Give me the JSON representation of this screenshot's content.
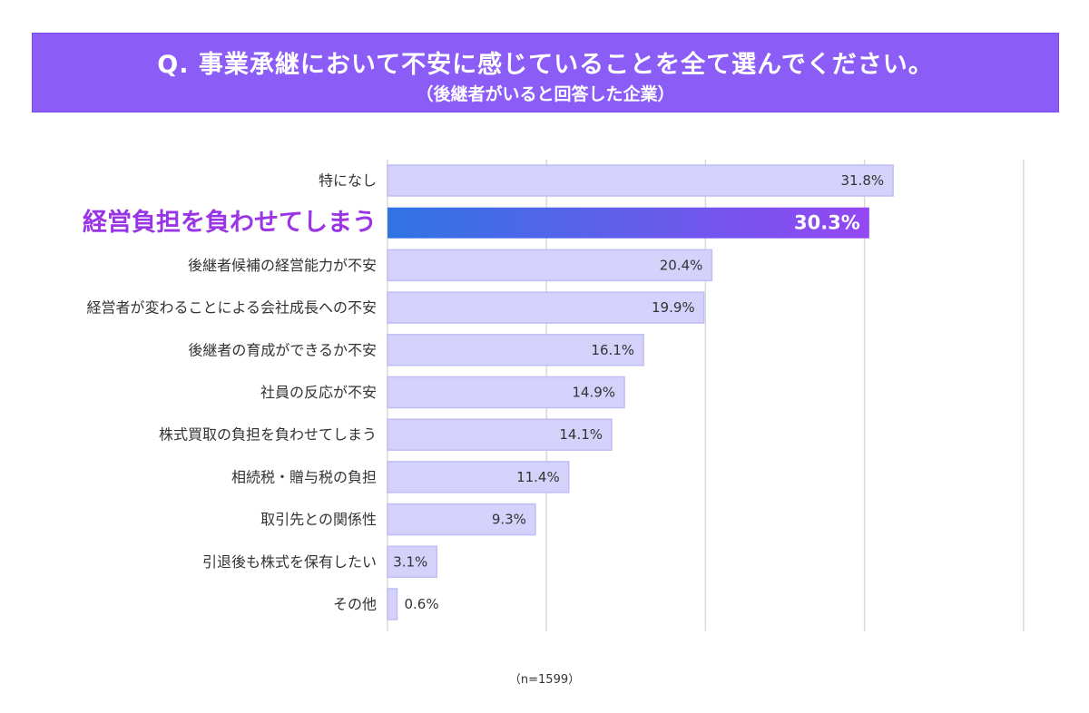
{
  "header": {
    "title": "Q. 事業承継において不安に感じていることを全て選んでください。",
    "subtitle": "（後継者がいると回答した企業）"
  },
  "chart_data": {
    "type": "bar",
    "orientation": "horizontal",
    "unit": "%",
    "xlim": [
      0,
      40
    ],
    "gridlines": [
      0,
      10,
      20,
      30,
      40
    ],
    "categories": [
      "特になし",
      "経営負担を負わせてしまう",
      "後継者候補の経営能力が不安",
      "経営者が変わることによる会社成長への不安",
      "後継者の育成ができるか不安",
      "社員の反応が不安",
      "株式買取の負担を負わせてしまう",
      "相続税・贈与税の負担",
      "取引先との関係性",
      "引退後も株式を保有したい",
      "その他"
    ],
    "values": [
      31.8,
      30.3,
      20.4,
      19.9,
      16.1,
      14.9,
      14.1,
      11.4,
      9.3,
      3.1,
      0.6
    ],
    "value_labels": [
      "31.8%",
      "30.3%",
      "20.4%",
      "19.9%",
      "16.1%",
      "14.9%",
      "14.1%",
      "11.4%",
      "9.3%",
      "3.1%",
      "0.6%"
    ],
    "highlight_index": 1,
    "colors": {
      "bar": "#d4d2fb",
      "bar_border": "#bfbdf3",
      "highlight_start": "#2f74e4",
      "highlight_end": "#9447f2",
      "highlight_label": "#9a35e6",
      "text": "#333333",
      "grid": "#d9d9d9"
    }
  },
  "footnote": "（n=1599）"
}
